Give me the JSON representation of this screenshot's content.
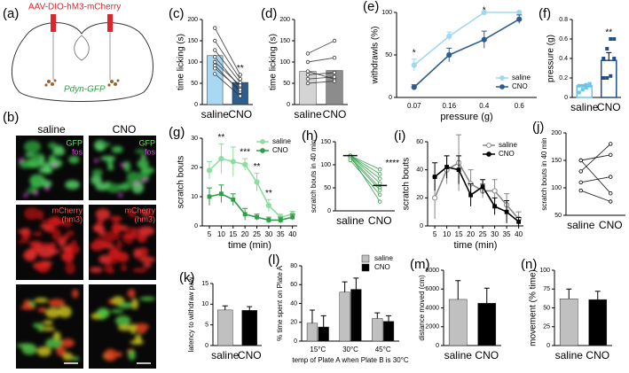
{
  "figure_a": {
    "label": "(a)",
    "virus": "AAV-DIO-hM3-mCherry",
    "reporter": "Pdyn-GFP"
  },
  "figure_b": {
    "label": "(b)",
    "columns": [
      "saline",
      "CNO"
    ],
    "gfp": "GFP",
    "fos": "fos",
    "mcherry": "mCherry",
    "hm3": "(hm3)"
  },
  "chart_data": [
    {
      "type": "bar",
      "label": "(c)",
      "ylabel": "time licking (s)",
      "categories": [
        "saline",
        "CNO"
      ],
      "values": [
        115,
        52
      ],
      "colors": [
        "#a8d8f3",
        "#2c5d8f"
      ],
      "subjects": [
        [
          180,
          70
        ],
        [
          150,
          60
        ],
        [
          128,
          52
        ],
        [
          112,
          40
        ],
        [
          100,
          45
        ],
        [
          92,
          30
        ],
        [
          85,
          35
        ],
        [
          72,
          20
        ]
      ],
      "ylim": [
        0,
        200
      ],
      "yticks": [
        0,
        50,
        100,
        150,
        200
      ],
      "annotations": [
        {
          "text": "**",
          "x": "CNO"
        }
      ]
    },
    {
      "type": "bar",
      "label": "(d)",
      "ylabel": "time licking (s)",
      "categories": [
        "saline",
        "CNO"
      ],
      "values": [
        78,
        80
      ],
      "colors": [
        "#d4d4d4",
        "#8c8c8c"
      ],
      "subjects": [
        [
          120,
          150
        ],
        [
          100,
          110
        ],
        [
          78,
          60
        ],
        [
          70,
          75
        ],
        [
          60,
          65
        ],
        [
          50,
          55
        ]
      ],
      "ylim": [
        0,
        200
      ],
      "yticks": [
        0,
        50,
        100,
        150,
        200
      ]
    },
    {
      "type": "line",
      "label": "(e)",
      "ylabel": "withdrawls (%)",
      "xlabel": "pressure (g)",
      "categories": [
        "0.07",
        "0.16",
        "0.4",
        "0.6"
      ],
      "series": [
        {
          "name": "saline",
          "color": "#9fd8f2",
          "values": [
            38,
            72,
            100,
            100
          ],
          "errors": [
            7,
            5,
            0,
            0
          ]
        },
        {
          "name": "CNO",
          "color": "#2c5d8f",
          "values": [
            12,
            50,
            68,
            92
          ],
          "errors": [
            3,
            8,
            10,
            5
          ]
        }
      ],
      "ylim": [
        0,
        100
      ],
      "yticks": [
        0,
        50,
        100
      ],
      "legend": "lower right",
      "annotations": [
        {
          "text": "*",
          "x": "0.07"
        },
        {
          "text": "*",
          "x": "0.4"
        }
      ]
    },
    {
      "type": "bar",
      "label": "(f)",
      "ylabel": "pressure (g)",
      "categories": [
        "saline",
        "CNO"
      ],
      "values": [
        0.12,
        0.38
      ],
      "errors": [
        0.01,
        0.08
      ],
      "colors": [
        "#6cc6ec",
        "#1f4e8c"
      ],
      "bar_fill": "#ffffff",
      "points": [
        [
          0.05,
          0.08,
          0.1,
          0.12,
          0.12,
          0.12,
          0.13,
          0.14
        ],
        [
          0.2,
          0.2,
          0.22,
          0.4,
          0.4,
          0.5,
          0.6,
          0.6
        ]
      ],
      "ylim": [
        0,
        0.8
      ],
      "yticks": [
        0,
        0.2,
        0.4,
        0.6,
        0.8
      ],
      "annotations": [
        {
          "text": "**",
          "x": "CNO"
        }
      ]
    },
    {
      "type": "line",
      "label": "(g)",
      "ylabel": "scratch bouts",
      "xlabel": "time (min)",
      "x": [
        5,
        10,
        15,
        20,
        25,
        30,
        35,
        40
      ],
      "xlim": [
        2,
        42
      ],
      "xticks": [
        5,
        10,
        15,
        20,
        25,
        30,
        35,
        40
      ],
      "series": [
        {
          "name": "saline",
          "color": "#8fdca0",
          "values": [
            19,
            23,
            22,
            21,
            15,
            7,
            3,
            4
          ],
          "errors": [
            3,
            5,
            5,
            2,
            3,
            2,
            1,
            1
          ]
        },
        {
          "name": "CNO",
          "color": "#2e9e47",
          "values": [
            10,
            11,
            9,
            4,
            3,
            2,
            2,
            3
          ],
          "errors": [
            3,
            3,
            2,
            2,
            1,
            1,
            1,
            1
          ]
        }
      ],
      "ylim": [
        0,
        30
      ],
      "yticks": [
        0,
        10,
        20,
        30
      ],
      "legend": "upper right",
      "annotations": [
        {
          "text": "**",
          "x": 10
        },
        {
          "text": "***",
          "x": 20
        },
        {
          "text": "**",
          "x": 25
        },
        {
          "text": "**",
          "x": 30
        }
      ]
    },
    {
      "type": "paired",
      "label": "(h)",
      "ylabel": "scratch bouts in 40 min",
      "categories": [
        "saline",
        "CNO"
      ],
      "color": "#2e9e47",
      "subjects": [
        [
          120,
          90
        ],
        [
          120,
          80
        ],
        [
          120,
          70
        ],
        [
          120,
          60
        ],
        [
          118,
          50
        ],
        [
          115,
          45
        ],
        [
          110,
          35
        ],
        [
          120,
          20
        ]
      ],
      "values": [
        120,
        55
      ],
      "ylim": [
        0,
        150
      ],
      "yticks": [
        0,
        50,
        100,
        150
      ],
      "annotations": [
        {
          "text": "****",
          "x": "CNO"
        }
      ]
    },
    {
      "type": "line",
      "label": "(i)",
      "ylabel": "scratch bouts",
      "xlabel": "time (min)",
      "x": [
        5,
        10,
        15,
        20,
        25,
        30,
        35,
        40
      ],
      "xlim": [
        2,
        42
      ],
      "xticks": [
        5,
        10,
        15,
        20,
        25,
        30,
        35,
        40
      ],
      "series": [
        {
          "name": "saline",
          "color": "#888888",
          "marker_fill": "#ffffff",
          "values": [
            20,
            40,
            45,
            30,
            25,
            25,
            15,
            5
          ],
          "errors": [
            15,
            10,
            20,
            10,
            5,
            8,
            8,
            5
          ]
        },
        {
          "name": "CNO",
          "color": "#000000",
          "values": [
            35,
            42,
            40,
            22,
            28,
            14,
            10,
            3
          ],
          "errors": [
            10,
            8,
            10,
            8,
            5,
            6,
            8,
            3
          ]
        }
      ],
      "ylim": [
        0,
        60
      ],
      "yticks": [
        0,
        20,
        40,
        60
      ],
      "legend": "upper right"
    },
    {
      "type": "paired",
      "label": "(j)",
      "ylabel": "scratch bouts in 40 min",
      "categories": [
        "saline",
        "CNO"
      ],
      "color": "#000000",
      "subjects": [
        [
          130,
          180
        ],
        [
          150,
          160
        ],
        [
          110,
          120
        ],
        [
          150,
          90
        ],
        [
          95,
          75
        ]
      ],
      "ylim": [
        50,
        200
      ],
      "yticks": [
        50,
        100,
        150,
        200
      ]
    },
    {
      "type": "bar",
      "label": "(k)",
      "ylabel": "latency to withdraw paw",
      "categories": [
        "saline",
        "CNO"
      ],
      "values": [
        8.6,
        8.5
      ],
      "errors": [
        1,
        0.9
      ],
      "colors": [
        "#c0c0c0",
        "#000000"
      ],
      "ylim": [
        0,
        15
      ],
      "yticks": [
        0,
        5,
        10,
        15
      ]
    },
    {
      "type": "grouped_bar",
      "label": "(l)",
      "ylabel": "% time spent on Plate A",
      "xlabel": "temp of Plate A when Plate B is 30°C",
      "categories": [
        "15°C",
        "30°C",
        "45°C"
      ],
      "series": [
        {
          "name": "saline",
          "color": "#c0c0c0",
          "values": [
            19,
            52,
            24
          ],
          "errors": [
            14,
            11,
            6
          ]
        },
        {
          "name": "CNO",
          "color": "#000000",
          "values": [
            15,
            55,
            21
          ],
          "errors": [
            12,
            12,
            6
          ]
        }
      ],
      "ylim": [
        0,
        80
      ],
      "yticks": [
        0,
        20,
        40,
        60,
        80
      ],
      "legend": "upper right"
    },
    {
      "type": "bar",
      "label": "(m)",
      "ylabel": "distance moved (cm)",
      "categories": [
        "saline",
        "CNO"
      ],
      "values": [
        4900,
        4500
      ],
      "errors": [
        2000,
        1600
      ],
      "colors": [
        "#c0c0c0",
        "#000000"
      ],
      "ylim": [
        0,
        8000
      ],
      "yticks": [
        0,
        2000,
        4000,
        6000,
        8000
      ]
    },
    {
      "type": "bar",
      "label": "(n)",
      "ylabel": "movement (% time)",
      "categories": [
        "saline",
        "CNO"
      ],
      "values": [
        62,
        61
      ],
      "errors": [
        13,
        11
      ],
      "colors": [
        "#c0c0c0",
        "#000000"
      ],
      "ylim": [
        0,
        100
      ],
      "yticks": [
        0,
        25,
        50,
        75,
        100
      ]
    }
  ]
}
